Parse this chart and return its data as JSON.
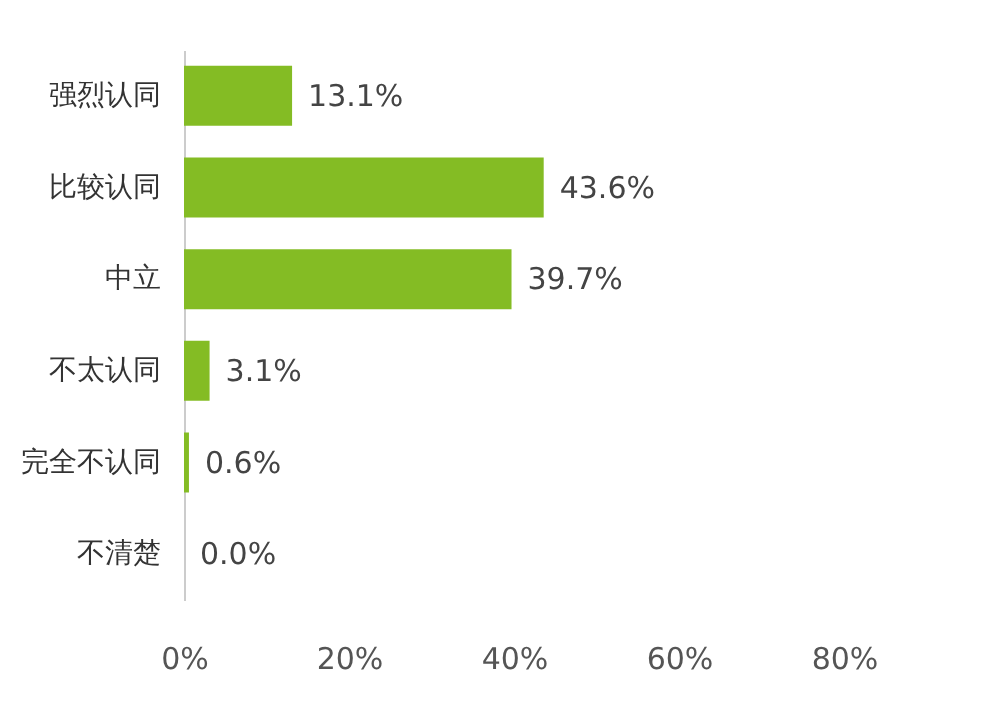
{
  "chart_data": {
    "type": "bar",
    "orientation": "horizontal",
    "categories": [
      "强烈认同",
      "比较认同",
      "中立",
      "不太认同",
      "完全不认同",
      "不清楚"
    ],
    "values": [
      13.1,
      43.6,
      39.7,
      3.1,
      0.6,
      0.0
    ],
    "color": "#84bc24",
    "xlim": [
      0,
      80
    ],
    "xticks": [
      {
        "value": 0,
        "label": "0%"
      },
      {
        "value": 20,
        "label": "20%"
      },
      {
        "value": 40,
        "label": "40%"
      },
      {
        "value": 60,
        "label": "60%"
      },
      {
        "value": 80,
        "label": "80%"
      }
    ],
    "value_labels": [
      "13.1%",
      "43.6%",
      "39.7%",
      "3.1%",
      "0.6%",
      "0.0%"
    ],
    "grid": false
  }
}
